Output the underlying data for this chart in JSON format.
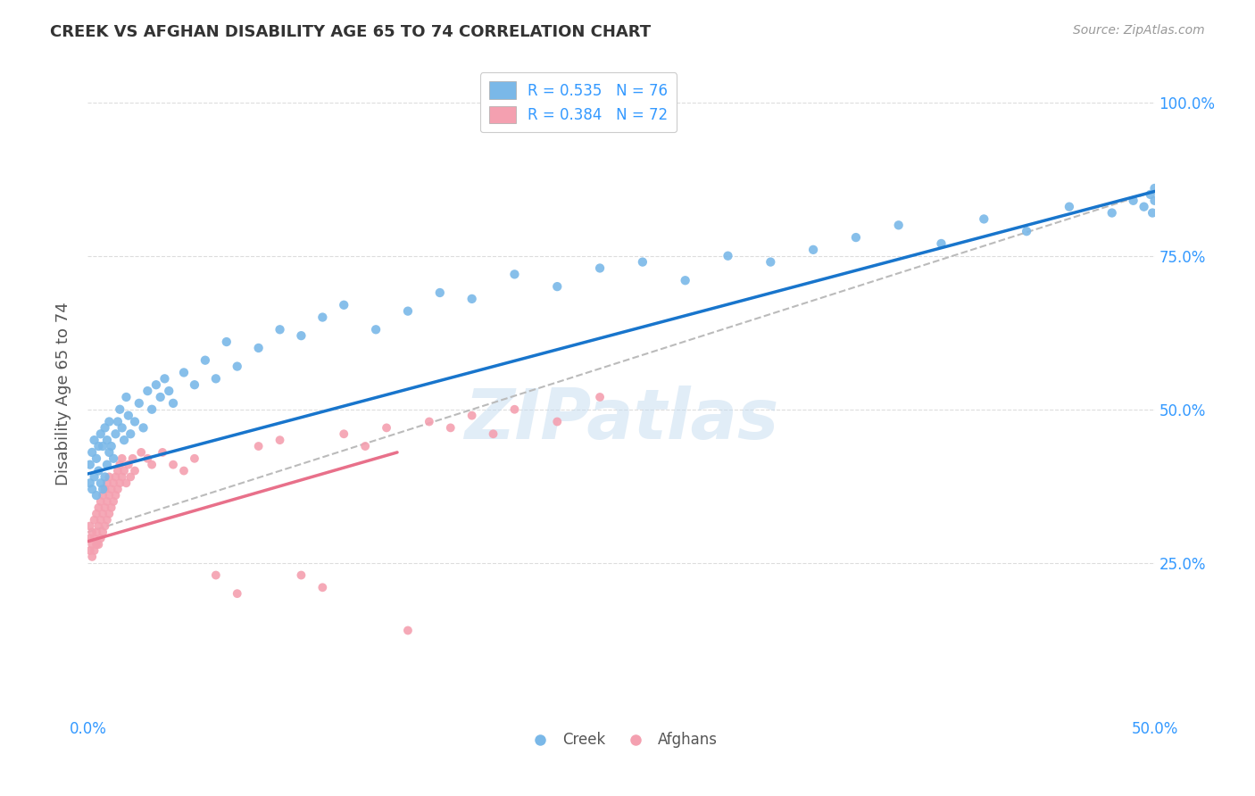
{
  "title": "CREEK VS AFGHAN DISABILITY AGE 65 TO 74 CORRELATION CHART",
  "source": "Source: ZipAtlas.com",
  "ylabel": "Disability Age 65 to 74",
  "xlim": [
    0.0,
    0.5
  ],
  "ylim": [
    0.0,
    1.05
  ],
  "xtick_positions": [
    0.0,
    0.1,
    0.2,
    0.3,
    0.4,
    0.5
  ],
  "xticklabels": [
    "0.0%",
    "",
    "",
    "",
    "",
    "50.0%"
  ],
  "ytick_positions": [
    0.25,
    0.5,
    0.75,
    1.0
  ],
  "ytick_labels_right": [
    "25.0%",
    "50.0%",
    "75.0%",
    "100.0%"
  ],
  "creek_color": "#7AB8E8",
  "afghan_color": "#F4A0B0",
  "creek_line_color": "#1875CC",
  "afghan_line_color": "#E8708A",
  "dashed_line_color": "#BBBBBB",
  "legend_creek_label": "R = 0.535   N = 76",
  "legend_afghan_label": "R = 0.384   N = 72",
  "watermark": "ZIPatlas",
  "background_color": "#FFFFFF",
  "grid_color": "#DDDDDD",
  "title_color": "#333333",
  "axis_label_color": "#3399FF",
  "creek_line_x": [
    0.0,
    0.5
  ],
  "creek_line_y": [
    0.395,
    0.855
  ],
  "afghan_line_x": [
    0.0,
    0.145
  ],
  "afghan_line_y": [
    0.285,
    0.43
  ],
  "dashed_line_x": [
    0.0,
    0.5
  ],
  "dashed_line_y": [
    0.3,
    0.855
  ],
  "creek_x": [
    0.001,
    0.001,
    0.002,
    0.002,
    0.003,
    0.003,
    0.004,
    0.004,
    0.005,
    0.005,
    0.006,
    0.006,
    0.007,
    0.007,
    0.008,
    0.008,
    0.009,
    0.009,
    0.01,
    0.01,
    0.011,
    0.012,
    0.013,
    0.014,
    0.015,
    0.016,
    0.017,
    0.018,
    0.019,
    0.02,
    0.022,
    0.024,
    0.026,
    0.028,
    0.03,
    0.032,
    0.034,
    0.036,
    0.038,
    0.04,
    0.045,
    0.05,
    0.055,
    0.06,
    0.065,
    0.07,
    0.08,
    0.09,
    0.1,
    0.11,
    0.12,
    0.135,
    0.15,
    0.165,
    0.18,
    0.2,
    0.22,
    0.24,
    0.26,
    0.28,
    0.3,
    0.32,
    0.34,
    0.36,
    0.38,
    0.4,
    0.42,
    0.44,
    0.46,
    0.48,
    0.49,
    0.495,
    0.498,
    0.499,
    0.5,
    0.5
  ],
  "creek_y": [
    0.38,
    0.41,
    0.37,
    0.43,
    0.39,
    0.45,
    0.36,
    0.42,
    0.4,
    0.44,
    0.38,
    0.46,
    0.37,
    0.44,
    0.39,
    0.47,
    0.41,
    0.45,
    0.43,
    0.48,
    0.44,
    0.42,
    0.46,
    0.48,
    0.5,
    0.47,
    0.45,
    0.52,
    0.49,
    0.46,
    0.48,
    0.51,
    0.47,
    0.53,
    0.5,
    0.54,
    0.52,
    0.55,
    0.53,
    0.51,
    0.56,
    0.54,
    0.58,
    0.55,
    0.61,
    0.57,
    0.6,
    0.63,
    0.62,
    0.65,
    0.67,
    0.63,
    0.66,
    0.69,
    0.68,
    0.72,
    0.7,
    0.73,
    0.74,
    0.71,
    0.75,
    0.74,
    0.76,
    0.78,
    0.8,
    0.77,
    0.81,
    0.79,
    0.83,
    0.82,
    0.84,
    0.83,
    0.85,
    0.82,
    0.84,
    0.86
  ],
  "afghan_x": [
    0.001,
    0.001,
    0.001,
    0.002,
    0.002,
    0.002,
    0.003,
    0.003,
    0.003,
    0.004,
    0.004,
    0.004,
    0.005,
    0.005,
    0.005,
    0.006,
    0.006,
    0.006,
    0.007,
    0.007,
    0.007,
    0.008,
    0.008,
    0.008,
    0.009,
    0.009,
    0.009,
    0.01,
    0.01,
    0.01,
    0.011,
    0.011,
    0.012,
    0.012,
    0.013,
    0.013,
    0.014,
    0.014,
    0.015,
    0.015,
    0.016,
    0.016,
    0.017,
    0.018,
    0.019,
    0.02,
    0.021,
    0.022,
    0.025,
    0.028,
    0.03,
    0.035,
    0.04,
    0.045,
    0.05,
    0.06,
    0.07,
    0.08,
    0.09,
    0.1,
    0.11,
    0.12,
    0.13,
    0.14,
    0.15,
    0.16,
    0.17,
    0.18,
    0.19,
    0.2,
    0.22,
    0.24
  ],
  "afghan_y": [
    0.27,
    0.29,
    0.31,
    0.26,
    0.28,
    0.3,
    0.27,
    0.29,
    0.32,
    0.28,
    0.3,
    0.33,
    0.28,
    0.31,
    0.34,
    0.29,
    0.32,
    0.35,
    0.3,
    0.33,
    0.36,
    0.31,
    0.34,
    0.37,
    0.32,
    0.35,
    0.38,
    0.33,
    0.36,
    0.39,
    0.34,
    0.37,
    0.35,
    0.38,
    0.36,
    0.39,
    0.37,
    0.4,
    0.38,
    0.41,
    0.39,
    0.42,
    0.4,
    0.38,
    0.41,
    0.39,
    0.42,
    0.4,
    0.43,
    0.42,
    0.41,
    0.43,
    0.41,
    0.4,
    0.42,
    0.23,
    0.2,
    0.44,
    0.45,
    0.23,
    0.21,
    0.46,
    0.44,
    0.47,
    0.14,
    0.48,
    0.47,
    0.49,
    0.46,
    0.5,
    0.48,
    0.52
  ]
}
